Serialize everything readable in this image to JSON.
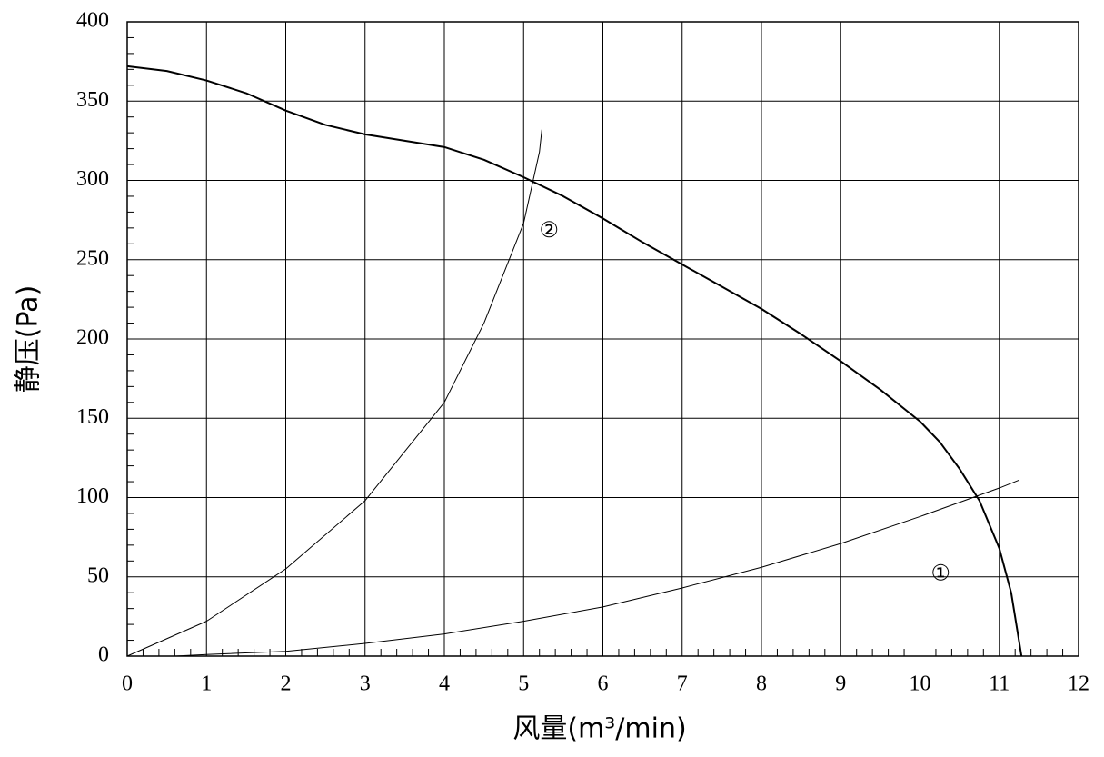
{
  "chart_data": {
    "type": "line",
    "x_label": "风量(m³/min)",
    "y_label": "静压(Pa)",
    "xlim": [
      0,
      12
    ],
    "xticks": [
      0,
      1,
      2,
      3,
      4,
      5,
      6,
      7,
      8,
      9,
      10,
      11,
      12
    ],
    "ylim": [
      0,
      400
    ],
    "yticks": [
      0,
      50,
      100,
      150,
      200,
      250,
      300,
      350,
      400
    ],
    "grid": true,
    "series": [
      {
        "color": "#000000",
        "x": [
          0,
          0.5,
          1,
          1.5,
          2,
          2.5,
          3,
          3.5,
          4,
          4.5,
          5,
          5.5,
          6,
          6.5,
          7,
          7.5,
          8,
          8.5,
          9,
          9.5,
          10,
          10.25,
          10.5,
          10.75,
          11,
          11.15,
          11.28
        ],
        "values": [
          372,
          369,
          363,
          355,
          344,
          335,
          329,
          325,
          321,
          313,
          302,
          290,
          276,
          261,
          247,
          233,
          219,
          203,
          186,
          168,
          148,
          135,
          118,
          98,
          68,
          40,
          0
        ]
      },
      {
        "name": "①",
        "color": "#000000",
        "x": [
          0.6,
          1,
          2,
          3,
          4,
          5,
          6,
          7,
          8,
          9,
          10,
          11,
          11.25
        ],
        "values": [
          0,
          1,
          3,
          8,
          14,
          22,
          31,
          43,
          56,
          71,
          88,
          106,
          111
        ]
      },
      {
        "name": "②",
        "color": "#000000",
        "x": [
          0,
          1,
          2,
          3,
          4,
          4.5,
          5,
          5.2,
          5.23
        ],
        "values": [
          0,
          22,
          55,
          98,
          160,
          210,
          273,
          318,
          332
        ]
      }
    ]
  }
}
